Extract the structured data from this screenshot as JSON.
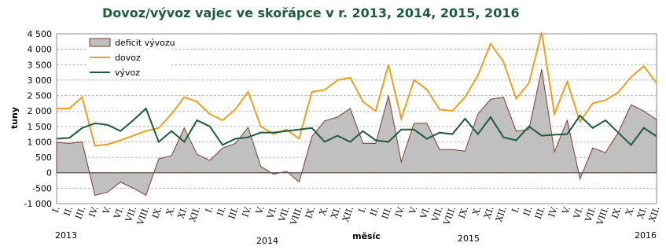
{
  "chart_data": {
    "type": "line",
    "title": "Dovoz/vývoz vajec ve skořápce v r. 2013, 2014, 2015, 2016",
    "x_label": "měsíc",
    "y_label": "tuny",
    "categories": [
      "I.",
      "II.",
      "III.",
      "IV.",
      "V.",
      "VI.",
      "VII.",
      "VIII.",
      "IX.",
      "X.",
      "XI.",
      "XII.",
      "I.",
      "II.",
      "III.",
      "IV.",
      "V.",
      "VI.",
      "VII.",
      "VIII.",
      "IX.",
      "X.",
      "XI.",
      "XII.",
      "I.",
      "II.",
      "III.",
      "IV.",
      "V.",
      "VI.",
      "VII.",
      "VIII.",
      "IX.",
      "X.",
      "XI.",
      "XII.",
      "I.",
      "II.",
      "III.",
      "IV.",
      "V.",
      "VI.",
      "VII.",
      "VIII.",
      "IX.",
      "X.",
      "XI.",
      "XII."
    ],
    "years": [
      "2013",
      "2014",
      "2015",
      "2016"
    ],
    "ylim": [
      -1000,
      4500
    ],
    "yticks": [
      {
        "value": -1000,
        "label": "-1 000"
      },
      {
        "value": -500,
        "label": "-500"
      },
      0,
      500,
      {
        "value": 1000,
        "label": "1 000"
      },
      {
        "value": 1500,
        "label": "1 500"
      },
      {
        "value": 2000,
        "label": "2 000"
      },
      {
        "value": 2500,
        "label": "2 500"
      },
      {
        "value": 3000,
        "label": "3 000"
      },
      {
        "value": 3500,
        "label": "3 500"
      },
      {
        "value": 4000,
        "label": "4 000"
      },
      {
        "value": 4500,
        "label": "4 500"
      }
    ],
    "grid": true,
    "legend": "top-left",
    "series": [
      {
        "name": "deficit vývozu",
        "type": "area",
        "color": "#c0c0c0",
        "values": [
          980,
          950,
          1000,
          -730,
          -630,
          -300,
          -500,
          -730,
          450,
          550,
          1450,
          600,
          400,
          800,
          950,
          1470,
          200,
          -50,
          50,
          -300,
          1170,
          1680,
          1800,
          2080,
          950,
          950,
          2500,
          350,
          1600,
          1600,
          750,
          750,
          700,
          1900,
          2380,
          2450,
          1350,
          1400,
          3350,
          670,
          1700,
          -200,
          800,
          650,
          1300,
          2200,
          2000,
          1720
        ]
      },
      {
        "name": "dovoz",
        "type": "line",
        "color": "#e8a020",
        "values": [
          2080,
          2080,
          2450,
          870,
          920,
          1050,
          1200,
          1350,
          1450,
          1900,
          2450,
          2300,
          1900,
          1700,
          2050,
          2620,
          1500,
          1250,
          1400,
          1100,
          2620,
          2680,
          3000,
          3080,
          2300,
          2000,
          3500,
          1750,
          3000,
          2700,
          2050,
          2000,
          2450,
          3150,
          4180,
          3600,
          2400,
          2900,
          4550,
          1900,
          2950,
          1650,
          2250,
          2350,
          2600,
          3100,
          3450,
          2900
        ]
      },
      {
        "name": "vývoz",
        "type": "line",
        "color": "#1e5a3c",
        "values": [
          1100,
          1130,
          1450,
          1600,
          1550,
          1350,
          1700,
          2080,
          1000,
          1350,
          1000,
          1700,
          1500,
          900,
          1100,
          1150,
          1300,
          1300,
          1350,
          1400,
          1450,
          1000,
          1200,
          1000,
          1350,
          1050,
          1000,
          1400,
          1400,
          1100,
          1300,
          1250,
          1750,
          1250,
          1800,
          1150,
          1050,
          1500,
          1200,
          1230,
          1250,
          1850,
          1450,
          1700,
          1300,
          900,
          1450,
          1180
        ]
      }
    ]
  }
}
